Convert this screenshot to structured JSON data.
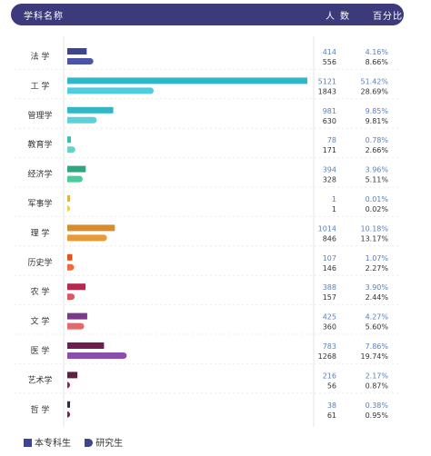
{
  "header": {
    "name": "学科名称",
    "count": "人数",
    "pct": "百分比"
  },
  "legend": {
    "s1": "本专科生",
    "s2": "研究生"
  },
  "chart_data": {
    "type": "bar",
    "orientation": "horizontal",
    "title": "",
    "categories": [
      "法 学",
      "工 学",
      "管理学",
      "教育学",
      "经济学",
      "军事学",
      "理 学",
      "历史学",
      "农 学",
      "文 学",
      "医 学",
      "艺术学",
      "哲 学"
    ],
    "series": [
      {
        "name": "本专科生",
        "values": [
          414,
          5121,
          981,
          78,
          394,
          1,
          1014,
          107,
          388,
          425,
          783,
          216,
          38
        ],
        "percents": [
          "4.16%",
          "51.42%",
          "9.85%",
          "0.78%",
          "3.96%",
          "0.01%",
          "10.18%",
          "1.07%",
          "3.90%",
          "4.27%",
          "7.86%",
          "2.17%",
          "0.38%"
        ]
      },
      {
        "name": "研究生",
        "values": [
          556,
          1843,
          630,
          171,
          328,
          1,
          846,
          146,
          157,
          360,
          1268,
          56,
          61
        ],
        "percents": [
          "8.66%",
          "28.69%",
          "9.81%",
          "2.66%",
          "5.11%",
          "0.02%",
          "13.17%",
          "2.27%",
          "2.44%",
          "5.60%",
          "19.74%",
          "0.87%",
          "0.95%"
        ]
      }
    ],
    "colors": [
      [
        "#3d4590",
        "#4b55a8"
      ],
      [
        "#2bb8cc",
        "#4fcde0"
      ],
      [
        "#33b7c4",
        "#5dd0dc"
      ],
      [
        "#3cbcb8",
        "#62d3cc"
      ],
      [
        "#2fa77c",
        "#50c99a"
      ],
      [
        "#e6b63b",
        "#f0c75a"
      ],
      [
        "#d88b2c",
        "#e99a38"
      ],
      [
        "#e0531f",
        "#f06b35"
      ],
      [
        "#b8284a",
        "#e0555e"
      ],
      [
        "#7a3a8c",
        "#e36a6a"
      ],
      [
        "#6b1f4e",
        "#8a4fa8"
      ],
      [
        "#5c2148",
        "#7b2e55"
      ],
      [
        "#2f2848",
        "#6e2a4a"
      ]
    ]
  }
}
